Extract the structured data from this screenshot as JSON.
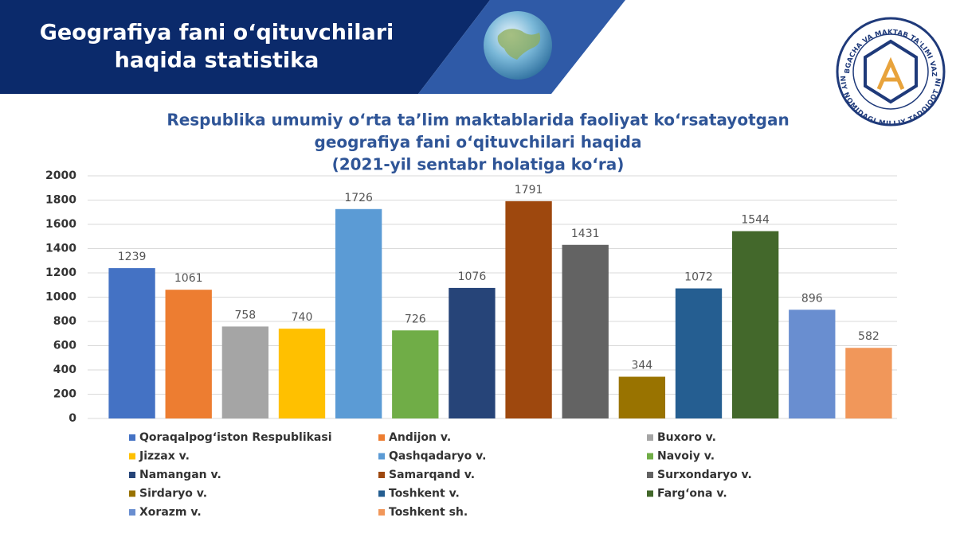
{
  "header": {
    "title_lines": [
      "Geografiya fani o‘qituvchilari",
      "haqida statistika"
    ]
  },
  "logo": {
    "top_text": "MAKTABGACHA VA MAKTAB TA'LIMI VAZIRLIGI",
    "bottom_text": "A.AVLONIY NOMIDAGI MILLIY TADQIQOT INSTITUTI"
  },
  "chart_data": {
    "type": "bar",
    "title_lines": [
      "Respublika umumiy o‘rta ta’lim maktablarida faoliyat ko‘rsatayotgan",
      "geografiya fani o‘qituvchilari haqida",
      "(2021-yil sentabr holatiga ko‘ra)"
    ],
    "categories": [
      "Qoraqalpog‘iston Respublikasi",
      "Andijon v.",
      "Buxoro v.",
      "Jizzax v.",
      "Qashqadaryo v.",
      "Navoiy v.",
      "Namangan v.",
      "Samarqand v.",
      "Surxondaryo v.",
      "Sirdaryo v.",
      "Toshkent v.",
      "Farg‘ona v.",
      "Xorazm v.",
      "Toshkent sh."
    ],
    "values": [
      1239,
      1061,
      758,
      740,
      1726,
      726,
      1076,
      1791,
      1431,
      344,
      1072,
      1544,
      896,
      582
    ],
    "colors": [
      "#4472c4",
      "#ed7d31",
      "#a5a5a5",
      "#ffc000",
      "#5b9bd5",
      "#70ad47",
      "#264478",
      "#9e480e",
      "#636363",
      "#997300",
      "#255e91",
      "#43682b",
      "#698ed0",
      "#f1975a"
    ],
    "ylim": [
      0,
      2000
    ],
    "yticks": [
      0,
      200,
      400,
      600,
      800,
      1000,
      1200,
      1400,
      1600,
      1800,
      2000
    ],
    "grid": true,
    "legend": "bottom"
  }
}
